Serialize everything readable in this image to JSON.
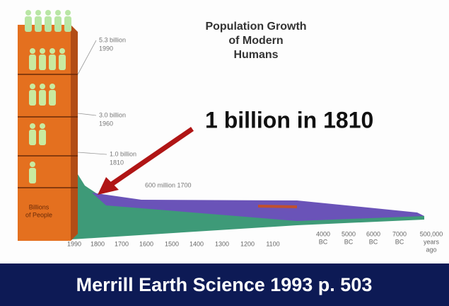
{
  "title": [
    "Population Growth",
    "of Modern",
    "Humans"
  ],
  "pillar_label": [
    "Billions",
    "of People"
  ],
  "markers": [
    {
      "lines": [
        "5.3 billion",
        "1990"
      ]
    },
    {
      "lines": [
        "3.0 billion",
        "1960"
      ]
    },
    {
      "lines": [
        "1.0 billion",
        "1810"
      ]
    },
    {
      "lines": [
        "600 million 1700"
      ]
    }
  ],
  "annotation": "1 billion in 1810",
  "x_labels": [
    [
      "1990"
    ],
    [
      "1800"
    ],
    [
      "1700"
    ],
    [
      "1600"
    ],
    [
      "1500"
    ],
    [
      "1400"
    ],
    [
      "1300"
    ],
    [
      "1200"
    ],
    [
      "1100"
    ],
    [
      "4000",
      "BC"
    ],
    [
      "5000",
      "BC"
    ],
    [
      "6000",
      "BC"
    ],
    [
      "7000",
      "BC"
    ],
    [
      "500,000",
      "years",
      "ago"
    ]
  ],
  "caption": "Merrill Earth Science 1993 p. 503"
}
